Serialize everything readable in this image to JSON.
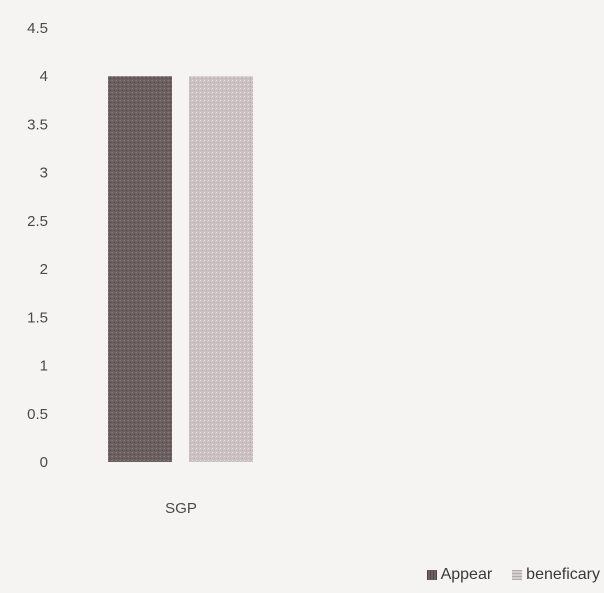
{
  "chart_data": {
    "type": "bar",
    "categories": [
      "SGP"
    ],
    "series": [
      {
        "name": "Appear",
        "values": [
          4
        ],
        "color": "#6e6263"
      },
      {
        "name": "beneficary",
        "values": [
          4
        ],
        "color": "#cdc3c5"
      }
    ],
    "title": "",
    "xlabel": "",
    "ylabel": "",
    "ylim": [
      0,
      4.5
    ],
    "yticks": [
      "0",
      "0.5",
      "1",
      "1.5",
      "2",
      "2.5",
      "3",
      "3.5",
      "4",
      "4.5"
    ],
    "grid": false,
    "legend_position": "bottom-right"
  }
}
